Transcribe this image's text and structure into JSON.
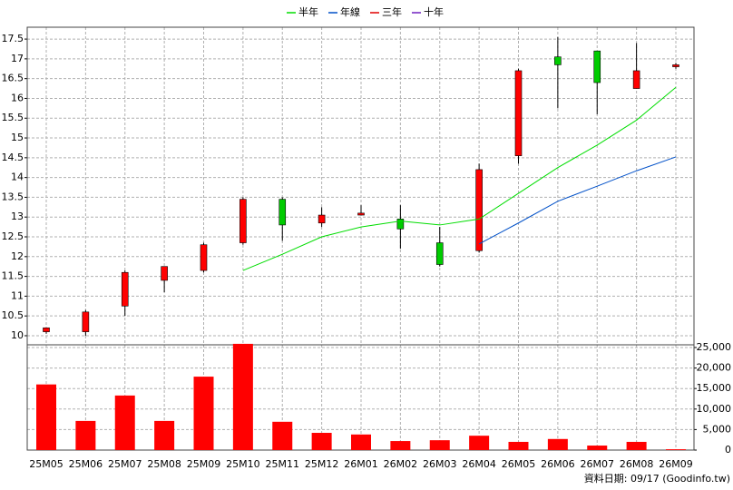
{
  "chart_data": {
    "type": "candlestick",
    "categories": [
      "25M05",
      "25M06",
      "25M07",
      "25M08",
      "25M09",
      "25M10",
      "25M11",
      "25M12",
      "26M01",
      "26M02",
      "26M03",
      "26M04",
      "26M05",
      "26M06",
      "26M07",
      "26M08",
      "26M09"
    ],
    "open": [
      10.1,
      10.1,
      10.75,
      11.4,
      11.65,
      12.35,
      13.45,
      12.85,
      13.05,
      12.95,
      12.35,
      12.15,
      14.55,
      17.05,
      17.2,
      16.25,
      16.8
    ],
    "high": [
      10.2,
      10.65,
      11.65,
      11.75,
      12.35,
      13.5,
      13.5,
      13.25,
      13.3,
      13.3,
      12.75,
      14.35,
      16.75,
      17.55,
      17.2,
      17.4,
      16.9
    ],
    "low": [
      10.05,
      10.0,
      10.5,
      11.1,
      11.6,
      12.3,
      12.4,
      12.75,
      13.05,
      12.2,
      11.75,
      12.1,
      14.35,
      15.75,
      15.6,
      16.25,
      16.75
    ],
    "close": [
      10.2,
      10.6,
      11.6,
      11.75,
      12.3,
      13.45,
      12.8,
      13.05,
      13.1,
      12.7,
      11.8,
      14.2,
      16.7,
      16.85,
      16.4,
      16.7,
      16.85
    ],
    "up_color": "#ff0000",
    "down_color": "#00cc00",
    "ylim": [
      9.77,
      17.8
    ],
    "yticks": [
      10,
      10.5,
      11,
      11.5,
      12,
      12.5,
      13,
      13.5,
      14,
      14.5,
      15,
      15.5,
      16,
      16.5,
      17,
      17.5
    ],
    "grid": true,
    "legend": "top",
    "series": [
      {
        "name": "半年",
        "color": "#00dd00",
        "values": [
          null,
          null,
          null,
          null,
          null,
          11.65,
          12.06,
          12.5,
          12.75,
          12.9,
          12.8,
          12.95,
          13.6,
          14.25,
          14.82,
          15.45,
          16.28
        ]
      },
      {
        "name": "年線",
        "color": "#0050c8",
        "values": [
          null,
          null,
          null,
          null,
          null,
          null,
          null,
          null,
          null,
          null,
          null,
          12.32,
          12.85,
          13.4,
          13.78,
          14.17,
          14.52
        ]
      },
      {
        "name": "三年",
        "color": "#e00000",
        "values": [
          null,
          null,
          null,
          null,
          null,
          null,
          null,
          null,
          null,
          null,
          null,
          null,
          null,
          null,
          null,
          null,
          null
        ]
      },
      {
        "name": "十年",
        "color": "#7020c0",
        "values": [
          null,
          null,
          null,
          null,
          null,
          null,
          null,
          null,
          null,
          null,
          null,
          null,
          null,
          null,
          null,
          null,
          null
        ]
      }
    ],
    "volume": {
      "type": "bar",
      "color": "#ff0000",
      "values": [
        16000,
        7100,
        13300,
        7100,
        17900,
        25900,
        6900,
        4200,
        3800,
        2200,
        2400,
        3500,
        2000,
        2700,
        1100,
        2000,
        200
      ],
      "ylim": [
        0,
        25660
      ],
      "yticks": [
        0,
        {
          "value": 5000,
          "label": "5,000"
        },
        {
          "value": 10000,
          "label": "10,000"
        },
        {
          "value": 15000,
          "label": "15,000"
        },
        {
          "value": 20000,
          "label": "20,000"
        },
        {
          "value": 25000,
          "label": "25,000"
        }
      ]
    },
    "note": "資料日期: 09/17 (Goodinfo.tw)"
  }
}
